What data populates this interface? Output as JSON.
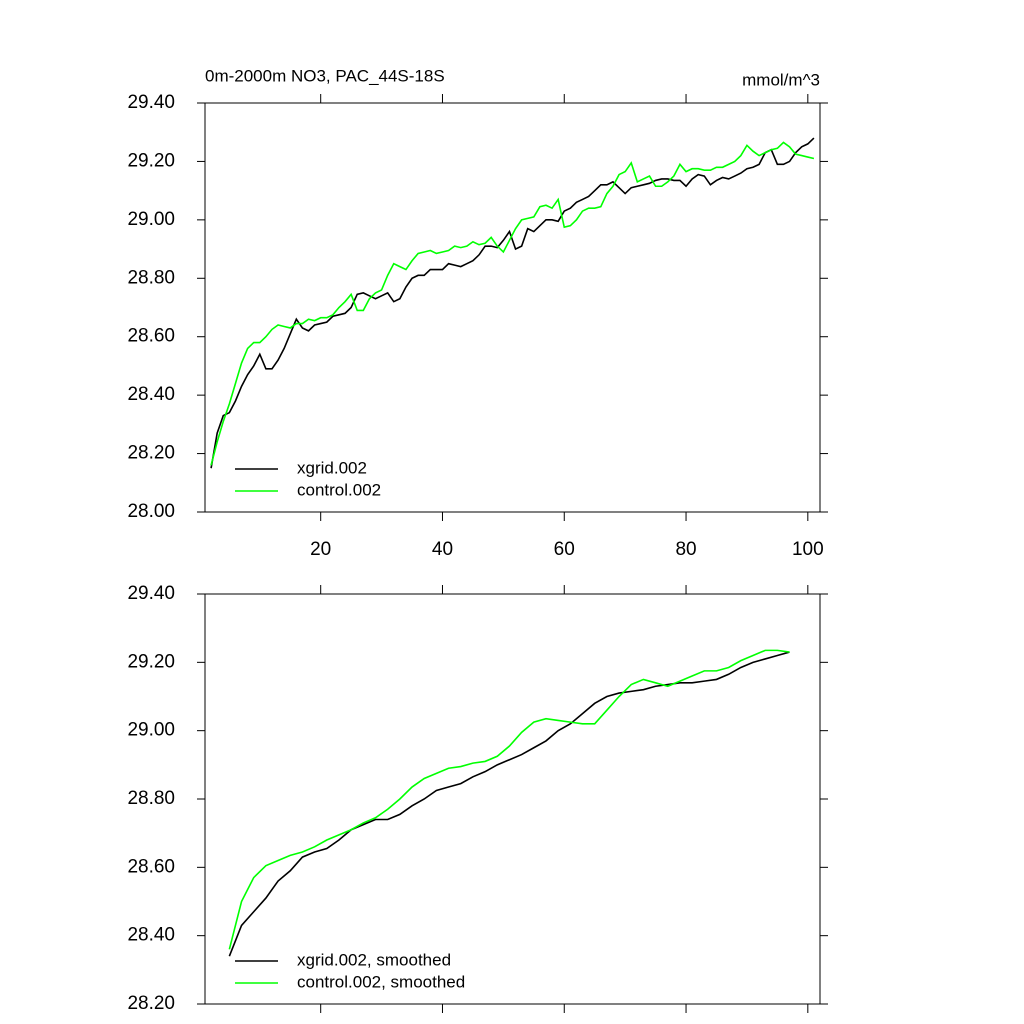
{
  "chart_data": [
    {
      "type": "line",
      "title": "0m-2000m NO3, PAC_44S-18S",
      "units_label": "mmol/m^3",
      "x": [
        2,
        3,
        4,
        5,
        6,
        7,
        8,
        9,
        10,
        11,
        12,
        13,
        14,
        15,
        16,
        17,
        18,
        19,
        20,
        21,
        22,
        23,
        24,
        25,
        26,
        27,
        28,
        29,
        30,
        31,
        32,
        33,
        34,
        35,
        36,
        37,
        38,
        39,
        40,
        41,
        42,
        43,
        44,
        45,
        46,
        47,
        48,
        49,
        50,
        51,
        52,
        53,
        54,
        55,
        56,
        57,
        58,
        59,
        60,
        61,
        62,
        63,
        64,
        65,
        66,
        67,
        68,
        69,
        70,
        71,
        72,
        73,
        74,
        75,
        76,
        77,
        78,
        79,
        80,
        81,
        82,
        83,
        84,
        85,
        86,
        87,
        88,
        89,
        90,
        91,
        92,
        93,
        94,
        95,
        96,
        97,
        98,
        99,
        100,
        101
      ],
      "series": [
        {
          "name": "xgrid.002",
          "color": "#000000",
          "values": [
            28.15,
            28.27,
            28.33,
            28.34,
            28.38,
            28.43,
            28.47,
            28.5,
            28.54,
            28.49,
            28.49,
            28.52,
            28.56,
            28.61,
            28.66,
            28.63,
            28.62,
            28.64,
            28.645,
            28.65,
            28.67,
            28.675,
            28.68,
            28.7,
            28.745,
            28.75,
            28.74,
            28.73,
            28.74,
            28.75,
            28.72,
            28.73,
            28.77,
            28.8,
            28.81,
            28.81,
            28.83,
            28.83,
            28.83,
            28.85,
            28.845,
            28.84,
            28.85,
            28.86,
            28.88,
            28.91,
            28.91,
            28.905,
            28.93,
            28.96,
            28.9,
            28.91,
            28.97,
            28.96,
            28.98,
            29.0,
            29.0,
            28.995,
            29.03,
            29.04,
            29.06,
            29.07,
            29.08,
            29.1,
            29.12,
            29.12,
            29.13,
            29.11,
            29.09,
            29.11,
            29.115,
            29.12,
            29.125,
            29.135,
            29.14,
            29.14,
            29.135,
            29.135,
            29.115,
            29.14,
            29.155,
            29.15,
            29.12,
            29.135,
            29.145,
            29.14,
            29.15,
            29.16,
            29.175,
            29.18,
            29.19,
            29.23,
            29.24,
            29.19,
            29.19,
            29.2,
            29.23,
            29.25,
            29.26,
            29.28
          ]
        },
        {
          "name": "control.002",
          "color": "#00ff00",
          "values": [
            28.16,
            28.24,
            28.31,
            28.37,
            28.44,
            28.51,
            28.56,
            28.58,
            28.58,
            28.6,
            28.625,
            28.64,
            28.635,
            28.63,
            28.645,
            28.645,
            28.66,
            28.655,
            28.665,
            28.665,
            28.675,
            28.7,
            28.72,
            28.745,
            28.69,
            28.69,
            28.73,
            28.75,
            28.76,
            28.81,
            28.85,
            28.84,
            28.83,
            28.86,
            28.885,
            28.89,
            28.895,
            28.885,
            28.89,
            28.895,
            28.91,
            28.905,
            28.91,
            28.925,
            28.915,
            28.92,
            28.94,
            28.91,
            28.89,
            28.93,
            28.97,
            29.0,
            29.005,
            29.01,
            29.045,
            29.05,
            29.04,
            29.07,
            28.975,
            28.98,
            29.0,
            29.03,
            29.04,
            29.04,
            29.045,
            29.09,
            29.115,
            29.155,
            29.165,
            29.195,
            29.13,
            29.14,
            29.15,
            29.115,
            29.115,
            29.13,
            29.15,
            29.19,
            29.165,
            29.175,
            29.175,
            29.17,
            29.17,
            29.18,
            29.18,
            29.19,
            29.2,
            29.22,
            29.255,
            29.235,
            29.22,
            29.23,
            29.24,
            29.245,
            29.265,
            29.25,
            29.225,
            29.22,
            29.215,
            29.21
          ]
        }
      ],
      "xlim": [
        1,
        102
      ],
      "ylim": [
        28.0,
        29.4
      ],
      "xticks": [
        20,
        40,
        60,
        80,
        100
      ],
      "yticks": [
        {
          "value": 28.0,
          "label": "28.00"
        },
        {
          "value": 28.2,
          "label": "28.20"
        },
        {
          "value": 28.4,
          "label": "28.40"
        },
        {
          "value": 28.6,
          "label": "28.60"
        },
        {
          "value": 28.8,
          "label": "28.80"
        },
        {
          "value": 29.0,
          "label": "29.00"
        },
        {
          "value": 29.2,
          "label": "29.20"
        },
        {
          "value": 29.4,
          "label": "29.40"
        }
      ],
      "show_xtick_labels": true,
      "legend": "lower left"
    },
    {
      "type": "line",
      "x": [
        5,
        7,
        9,
        11,
        13,
        15,
        17,
        19,
        21,
        23,
        25,
        27,
        29,
        31,
        33,
        35,
        37,
        39,
        41,
        43,
        45,
        47,
        49,
        51,
        53,
        55,
        57,
        59,
        61,
        63,
        65,
        67,
        69,
        71,
        73,
        75,
        77,
        79,
        81,
        83,
        85,
        87,
        89,
        91,
        93,
        95,
        97
      ],
      "series": [
        {
          "name": "xgrid.002, smoothed",
          "color": "#000000",
          "values": [
            28.34,
            28.43,
            28.47,
            28.51,
            28.56,
            28.59,
            28.63,
            28.645,
            28.655,
            28.68,
            28.71,
            28.725,
            28.74,
            28.74,
            28.755,
            28.78,
            28.8,
            28.825,
            28.835,
            28.845,
            28.865,
            28.88,
            28.9,
            28.915,
            28.93,
            28.95,
            28.97,
            29.0,
            29.02,
            29.05,
            29.08,
            29.1,
            29.11,
            29.115,
            29.12,
            29.13,
            29.135,
            29.14,
            29.14,
            29.145,
            29.15,
            29.165,
            29.185,
            29.2,
            29.21,
            29.22,
            29.23
          ]
        },
        {
          "name": "control.002, smoothed",
          "color": "#00ff00",
          "values": [
            28.36,
            28.5,
            28.57,
            28.605,
            28.62,
            28.635,
            28.645,
            28.66,
            28.68,
            28.695,
            28.71,
            28.73,
            28.745,
            28.77,
            28.8,
            28.835,
            28.86,
            28.875,
            28.89,
            28.895,
            28.905,
            28.91,
            28.925,
            28.955,
            28.995,
            29.025,
            29.035,
            29.03,
            29.025,
            29.02,
            29.02,
            29.06,
            29.1,
            29.135,
            29.15,
            29.14,
            29.13,
            29.145,
            29.16,
            29.175,
            29.175,
            29.185,
            29.205,
            29.22,
            29.235,
            29.235,
            29.23
          ]
        }
      ],
      "xlim": [
        1,
        102
      ],
      "ylim": [
        28.2,
        29.4
      ],
      "xticks": [
        20,
        40,
        60,
        80,
        100
      ],
      "yticks": [
        {
          "value": 28.2,
          "label": "28.20"
        },
        {
          "value": 28.4,
          "label": "28.40"
        },
        {
          "value": 28.6,
          "label": "28.60"
        },
        {
          "value": 28.8,
          "label": "28.80"
        },
        {
          "value": 29.0,
          "label": "29.00"
        },
        {
          "value": 29.2,
          "label": "29.20"
        },
        {
          "value": 29.4,
          "label": "29.40"
        }
      ],
      "show_xtick_labels": false,
      "legend": "lower left"
    }
  ]
}
